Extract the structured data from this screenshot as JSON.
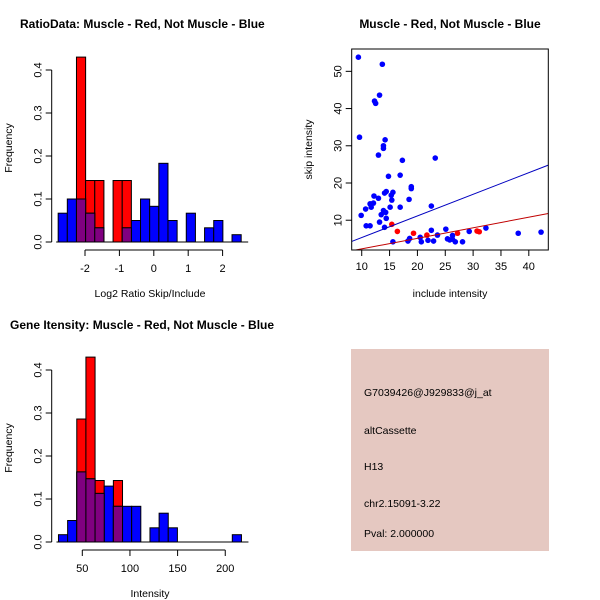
{
  "colors": {
    "muscle": "#ff0000",
    "not_muscle": "#0000ff",
    "overlap": "#800080",
    "info_bg": "#e5c8c1",
    "pval": "#a00000"
  },
  "chart_data": [
    {
      "type": "bar",
      "subtype": "overlaid-histogram",
      "title": "RatioData: Muscle - Red, Not Muscle - Blue",
      "xlabel": "Log2 Ratio Skip/Include",
      "ylabel": "Frequency",
      "xticks": [
        "-2",
        "-1",
        "0",
        "1",
        "2"
      ],
      "xtick_values": [
        -2,
        -1,
        0,
        1,
        2
      ],
      "yticks": [
        "0.0",
        "0.1",
        "0.2",
        "0.3",
        "0.4"
      ],
      "ytick_values": [
        0,
        0.1,
        0.2,
        0.3,
        0.4
      ],
      "bin_start": -2.78,
      "bin_width": 0.266,
      "series": [
        {
          "name": "Muscle",
          "color": "red",
          "values": [
            0,
            0,
            0.43,
            0.143,
            0.143,
            0,
            0.143,
            0.143,
            0,
            0,
            0,
            0,
            0,
            0,
            0,
            0,
            0,
            0,
            0,
            0
          ]
        },
        {
          "name": "Not Muscle",
          "color": "blue",
          "values": [
            0.067,
            0.1,
            0.1,
            0.067,
            0.033,
            0,
            0,
            0.033,
            0.05,
            0.1,
            0.083,
            0.183,
            0.05,
            0,
            0.067,
            0,
            0.033,
            0.05,
            0,
            0.017
          ]
        }
      ]
    },
    {
      "type": "scatter",
      "title": "Muscle - Red, Not Muscle - Blue",
      "xlabel": "include intensity",
      "ylabel": "skip intensity",
      "xlim": [
        8.2,
        43.5
      ],
      "ylim": [
        2.0,
        56
      ],
      "xticks": [
        "10",
        "15",
        "20",
        "25",
        "30",
        "35",
        "40"
      ],
      "xtick_values": [
        10,
        15,
        20,
        25,
        30,
        35,
        40
      ],
      "yticks": [
        "10",
        "20",
        "30",
        "40",
        "50"
      ],
      "ytick_values": [
        10,
        20,
        30,
        40,
        50
      ],
      "series": [
        {
          "name": "Not Muscle",
          "color": "blue",
          "points": [
            [
              9.4,
              53.8
            ],
            [
              13.7,
              51.9
            ],
            [
              13.2,
              43.6
            ],
            [
              12.3,
              42
            ],
            [
              12.5,
              41.4
            ],
            [
              9.6,
              32.3
            ],
            [
              14.2,
              31.6
            ],
            [
              13.9,
              30
            ],
            [
              13.9,
              29.3
            ],
            [
              13,
              27.5
            ],
            [
              23.2,
              26.7
            ],
            [
              17.3,
              26.1
            ],
            [
              16.9,
              22.1
            ],
            [
              14.8,
              21.8
            ],
            [
              18.9,
              19
            ],
            [
              18.9,
              18.5
            ],
            [
              15.6,
              17.5
            ],
            [
              14.4,
              17.7
            ],
            [
              14.1,
              17.3
            ],
            [
              12.2,
              16.5
            ],
            [
              13,
              15.9
            ],
            [
              18.5,
              15.6
            ],
            [
              15.4,
              15.4
            ],
            [
              15.3,
              16.7
            ],
            [
              11.5,
              14.4
            ],
            [
              12.1,
              14.6
            ],
            [
              11.7,
              13.5
            ],
            [
              15.1,
              13.5
            ],
            [
              16.9,
              13.5
            ],
            [
              22.5,
              13.8
            ],
            [
              10.7,
              13
            ],
            [
              9.9,
              11.3
            ],
            [
              13.9,
              12.6
            ],
            [
              14.3,
              12.1
            ],
            [
              13.5,
              11.5
            ],
            [
              14.4,
              10.5
            ],
            [
              13.2,
              9.5
            ],
            [
              10.8,
              8.5
            ],
            [
              11.5,
              8.5
            ],
            [
              14.1,
              8.1
            ],
            [
              22.5,
              7.3
            ],
            [
              25.1,
              7.6
            ],
            [
              29.3,
              7
            ],
            [
              32.3,
              7.9
            ],
            [
              38.1,
              6.5
            ],
            [
              42.2,
              6.8
            ],
            [
              23.6,
              6
            ],
            [
              26.3,
              5.9
            ],
            [
              20.5,
              5.4
            ],
            [
              18.6,
              5.1
            ],
            [
              18.3,
              4.4
            ],
            [
              20.7,
              4.2
            ],
            [
              21.9,
              4.6
            ],
            [
              22.9,
              4.4
            ],
            [
              25.4,
              5
            ],
            [
              25.8,
              4.7
            ],
            [
              26.3,
              4.9
            ],
            [
              26.8,
              4.2
            ],
            [
              28.1,
              4.2
            ],
            [
              15.6,
              4.2
            ]
          ]
        },
        {
          "name": "Muscle",
          "color": "red",
          "points": [
            [
              15.4,
              8.9
            ],
            [
              16.4,
              7
            ],
            [
              19.3,
              6.5
            ],
            [
              21.7,
              6
            ],
            [
              27.2,
              6.5
            ],
            [
              30.7,
              7.1
            ],
            [
              31.1,
              6.9
            ]
          ]
        }
      ],
      "fit_lines": [
        {
          "name": "Not Muscle fit",
          "color": "blue",
          "from": [
            8.2,
            4.3
          ],
          "to": [
            43.5,
            24.8
          ]
        },
        {
          "name": "Muscle fit",
          "color": "red",
          "from": [
            8.2,
            1.8
          ],
          "to": [
            43.5,
            11.8
          ]
        }
      ]
    },
    {
      "type": "bar",
      "subtype": "overlaid-histogram",
      "title": "Gene Itensity: Muscle - Red, Not Muscle - Blue",
      "xlabel": "Intensity",
      "ylabel": "Frequency",
      "xticks": [
        "50",
        "100",
        "150",
        "200"
      ],
      "xtick_values": [
        50,
        100,
        150,
        200
      ],
      "yticks": [
        "0.0",
        "0.1",
        "0.2",
        "0.3",
        "0.4"
      ],
      "ytick_values": [
        0,
        0.1,
        0.2,
        0.3,
        0.4
      ],
      "bin_start": 25,
      "bin_width": 9.6,
      "series": [
        {
          "name": "Muscle",
          "color": "red",
          "values": [
            0,
            0,
            0.286,
            0.43,
            0.143,
            0,
            0.143,
            0,
            0,
            0,
            0,
            0,
            0,
            0,
            0,
            0,
            0,
            0,
            0,
            0
          ]
        },
        {
          "name": "Not Muscle",
          "color": "blue",
          "values": [
            0.017,
            0.05,
            0.163,
            0.147,
            0.113,
            0.13,
            0.083,
            0.083,
            0.083,
            0,
            0.033,
            0.067,
            0.033,
            0,
            0,
            0,
            0,
            0,
            0,
            0.017
          ]
        }
      ]
    }
  ],
  "info": {
    "probe_id": "G7039426@J929833@j_at",
    "event_type": "altCassette",
    "tissue": "H13",
    "location": "chr2.15091-3.22",
    "pval": "Pval: 2.000000"
  }
}
